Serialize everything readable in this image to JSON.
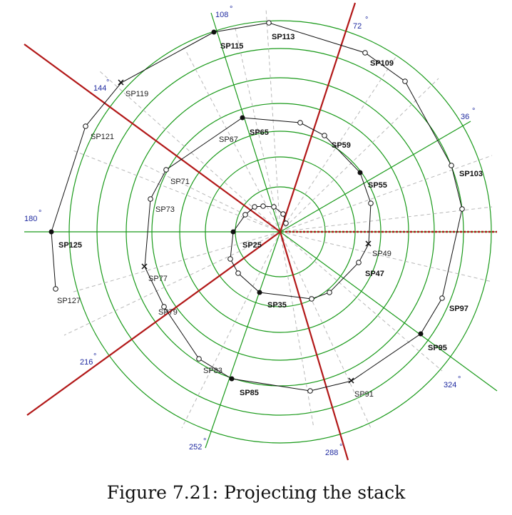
{
  "caption": "Figure 7.21: Projecting the stack",
  "angle_labels": [
    "36",
    "72",
    "108",
    "144",
    "180",
    "216",
    "252",
    "288",
    "324"
  ],
  "stations": [
    {
      "label": "SP25",
      "bold": true
    },
    {
      "label": "SP35",
      "bold": true
    },
    {
      "label": "SP47",
      "bold": true
    },
    {
      "label": "SP49",
      "bold": false
    },
    {
      "label": "SP55",
      "bold": true
    },
    {
      "label": "SP59",
      "bold": true
    },
    {
      "label": "SP65",
      "bold": true
    },
    {
      "label": "SP67",
      "bold": false
    },
    {
      "label": "SP71",
      "bold": false
    },
    {
      "label": "SP73",
      "bold": false
    },
    {
      "label": "SP77",
      "bold": false
    },
    {
      "label": "SP79",
      "bold": false
    },
    {
      "label": "SP83",
      "bold": false
    },
    {
      "label": "SP85",
      "bold": true
    },
    {
      "label": "SP91",
      "bold": false
    },
    {
      "label": "SP95",
      "bold": true
    },
    {
      "label": "SP97",
      "bold": true
    },
    {
      "label": "SP103",
      "bold": true
    },
    {
      "label": "SP109",
      "bold": true
    },
    {
      "label": "SP113",
      "bold": true
    },
    {
      "label": "SP115",
      "bold": true
    },
    {
      "label": "SP119",
      "bold": false
    },
    {
      "label": "SP121",
      "bold": false
    },
    {
      "label": "SP125",
      "bold": true
    },
    {
      "label": "SP127",
      "bold": false
    }
  ],
  "colors": {
    "rings": "#1a9a1a",
    "projection_lines": "#b21818",
    "dashed_guides": "#b8b8b8",
    "path": "#111111",
    "angle_text": "#1f2aa0"
  }
}
